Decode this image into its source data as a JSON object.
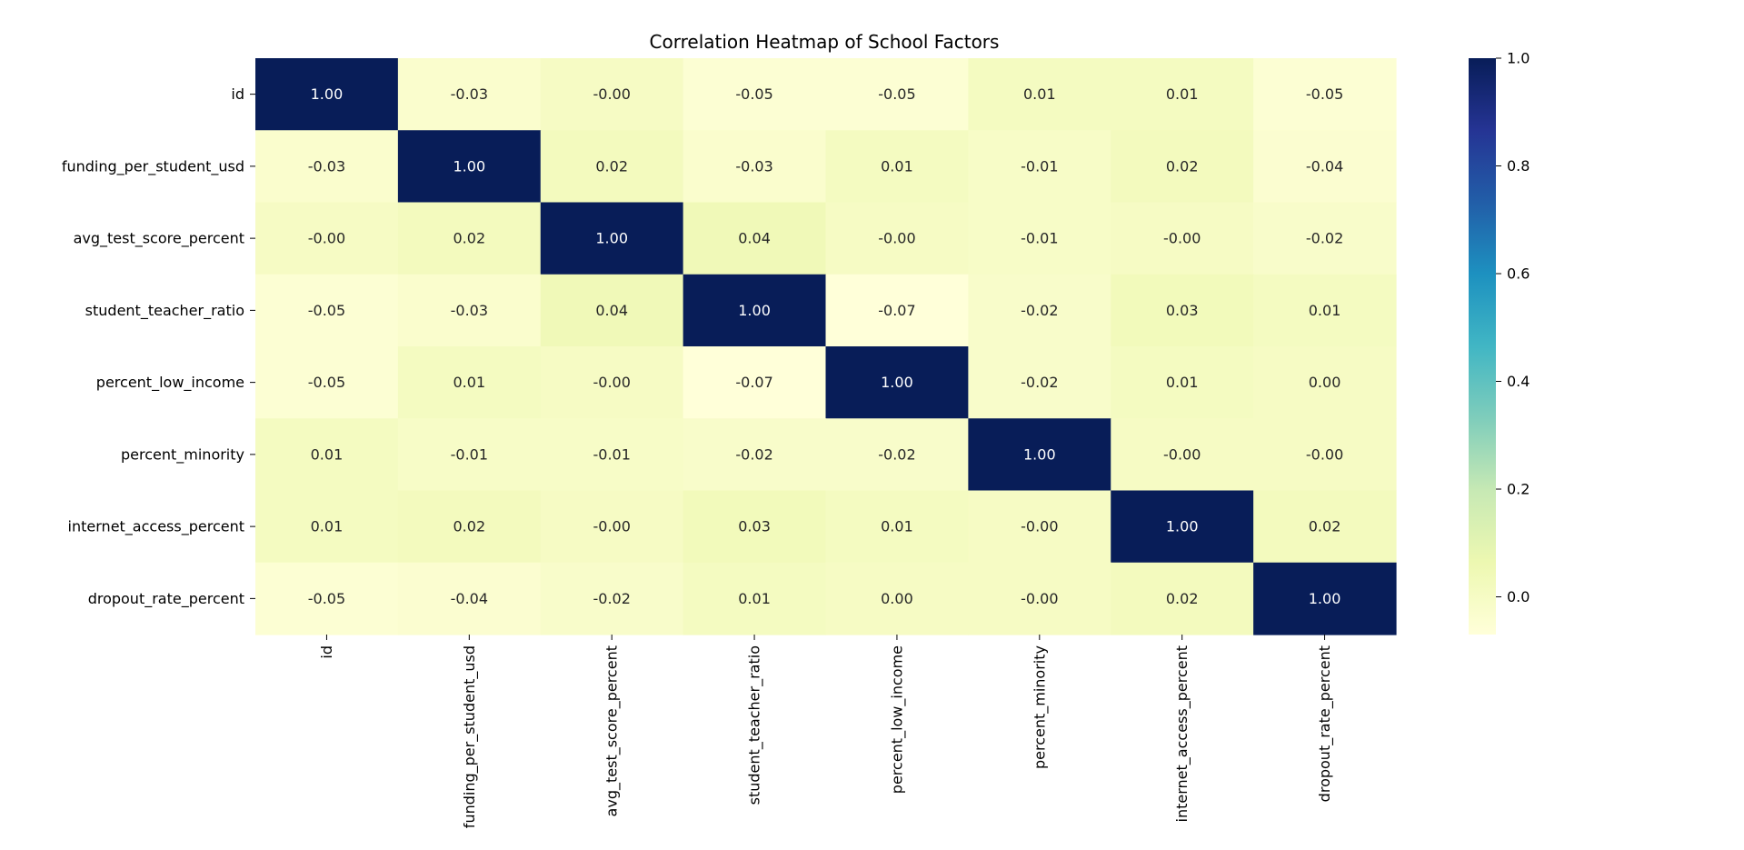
{
  "chart_data": {
    "type": "heatmap",
    "title": "Correlation Heatmap of School Factors",
    "xlabel": "",
    "ylabel": "",
    "rows": [
      "id",
      "funding_per_student_usd",
      "avg_test_score_percent",
      "student_teacher_ratio",
      "percent_low_income",
      "percent_minority",
      "internet_access_percent",
      "dropout_rate_percent"
    ],
    "columns": [
      "id",
      "funding_per_student_usd",
      "avg_test_score_percent",
      "student_teacher_ratio",
      "percent_low_income",
      "percent_minority",
      "internet_access_percent",
      "dropout_rate_percent"
    ],
    "values": [
      [
        1.0,
        -0.03,
        -0.0,
        -0.05,
        -0.05,
        0.01,
        0.01,
        -0.05
      ],
      [
        -0.03,
        1.0,
        0.02,
        -0.03,
        0.01,
        -0.01,
        0.02,
        -0.04
      ],
      [
        -0.0,
        0.02,
        1.0,
        0.04,
        -0.0,
        -0.01,
        -0.0,
        -0.02
      ],
      [
        -0.05,
        -0.03,
        0.04,
        1.0,
        -0.07,
        -0.02,
        0.03,
        0.01
      ],
      [
        -0.05,
        0.01,
        -0.0,
        -0.07,
        1.0,
        -0.02,
        0.01,
        0.0
      ],
      [
        0.01,
        -0.01,
        -0.01,
        -0.02,
        -0.02,
        1.0,
        -0.0,
        -0.0
      ],
      [
        0.01,
        0.02,
        -0.0,
        0.03,
        0.01,
        -0.0,
        1.0,
        0.02
      ],
      [
        -0.05,
        -0.04,
        -0.02,
        0.01,
        0.0,
        -0.0,
        0.02,
        1.0
      ]
    ],
    "cell_labels": [
      [
        "1.00",
        "-0.03",
        "-0.00",
        "-0.05",
        "-0.05",
        "0.01",
        "0.01",
        "-0.05"
      ],
      [
        "-0.03",
        "1.00",
        "0.02",
        "-0.03",
        "0.01",
        "-0.01",
        "0.02",
        "-0.04"
      ],
      [
        "-0.00",
        "0.02",
        "1.00",
        "0.04",
        "-0.00",
        "-0.01",
        "-0.00",
        "-0.02"
      ],
      [
        "-0.05",
        "-0.03",
        "0.04",
        "1.00",
        "-0.07",
        "-0.02",
        "0.03",
        "0.01"
      ],
      [
        "-0.05",
        "0.01",
        "-0.00",
        "-0.07",
        "1.00",
        "-0.02",
        "0.01",
        "0.00"
      ],
      [
        "0.01",
        "-0.01",
        "-0.01",
        "-0.02",
        "-0.02",
        "1.00",
        "-0.00",
        "-0.00"
      ],
      [
        "0.01",
        "0.02",
        "-0.00",
        "0.03",
        "0.01",
        "-0.00",
        "1.00",
        "0.02"
      ],
      [
        "-0.05",
        "-0.04",
        "-0.02",
        "0.01",
        "0.00",
        "-0.00",
        "0.02",
        "1.00"
      ]
    ],
    "colormap": "YlGnBu",
    "colormap_stops": [
      "#ffffd9",
      "#edf8b1",
      "#c7e9b4",
      "#7fcdbb",
      "#41b6c4",
      "#1d91c0",
      "#225ea8",
      "#253494",
      "#081d58"
    ],
    "vmin": -0.07,
    "vmax": 1.0,
    "colorbar": {
      "ticks": [
        0.0,
        0.2,
        0.4,
        0.6,
        0.8,
        1.0
      ],
      "tick_labels": [
        "0.0",
        "0.2",
        "0.4",
        "0.6",
        "0.8",
        "1.0"
      ],
      "position": "right"
    },
    "grid": false
  }
}
